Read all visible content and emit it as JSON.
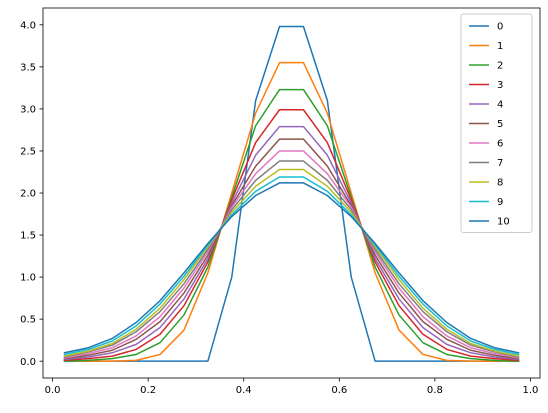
{
  "chart_data": {
    "type": "line",
    "title": "",
    "xlabel": "",
    "ylabel": "",
    "xlim": [
      -0.02,
      1.02
    ],
    "ylim": [
      -0.2,
      4.2
    ],
    "grid": false,
    "legend_position": "top-right",
    "xticks": [
      0.0,
      0.2,
      0.4,
      0.6,
      0.8,
      1.0
    ],
    "yticks": [
      0.0,
      0.5,
      1.0,
      1.5,
      2.0,
      2.5,
      3.0,
      3.5,
      4.0
    ],
    "x": [
      0.025,
      0.075,
      0.125,
      0.175,
      0.225,
      0.275,
      0.325,
      0.375,
      0.425,
      0.475,
      0.525,
      0.575,
      0.625,
      0.675,
      0.725,
      0.775,
      0.825,
      0.875,
      0.925,
      0.975
    ],
    "series": [
      {
        "name": "0",
        "color": "#1f77b4",
        "values": [
          0.0,
          0.0,
          0.0,
          0.0,
          0.0,
          0.0,
          0.0,
          1.0,
          3.1,
          3.98,
          3.98,
          3.1,
          1.0,
          0.0,
          0.0,
          0.0,
          0.0,
          0.0,
          0.0,
          0.0
        ]
      },
      {
        "name": "1",
        "color": "#ff7f0e",
        "values": [
          0.0,
          0.0,
          0.0,
          0.01,
          0.08,
          0.37,
          1.05,
          2.0,
          2.95,
          3.55,
          3.55,
          2.95,
          2.0,
          1.05,
          0.37,
          0.08,
          0.01,
          0.0,
          0.0,
          0.0
        ]
      },
      {
        "name": "2",
        "color": "#2ca02c",
        "values": [
          0.0,
          0.01,
          0.03,
          0.08,
          0.22,
          0.55,
          1.12,
          1.95,
          2.8,
          3.23,
          3.23,
          2.8,
          1.95,
          1.12,
          0.55,
          0.22,
          0.08,
          0.03,
          0.01,
          0.0
        ]
      },
      {
        "name": "3",
        "color": "#d62728",
        "values": [
          0.01,
          0.03,
          0.06,
          0.14,
          0.32,
          0.66,
          1.18,
          1.92,
          2.6,
          2.99,
          2.99,
          2.6,
          1.92,
          1.18,
          0.66,
          0.32,
          0.14,
          0.06,
          0.03,
          0.01
        ]
      },
      {
        "name": "4",
        "color": "#9467bd",
        "values": [
          0.02,
          0.05,
          0.1,
          0.2,
          0.4,
          0.74,
          1.22,
          1.88,
          2.45,
          2.79,
          2.79,
          2.45,
          1.88,
          1.22,
          0.74,
          0.4,
          0.2,
          0.1,
          0.05,
          0.02
        ]
      },
      {
        "name": "5",
        "color": "#8c564b",
        "values": [
          0.03,
          0.07,
          0.13,
          0.26,
          0.47,
          0.81,
          1.26,
          1.85,
          2.32,
          2.64,
          2.64,
          2.32,
          1.85,
          1.26,
          0.81,
          0.47,
          0.26,
          0.13,
          0.07,
          0.03
        ]
      },
      {
        "name": "6",
        "color": "#e377c2",
        "values": [
          0.04,
          0.09,
          0.16,
          0.3,
          0.53,
          0.87,
          1.3,
          1.83,
          2.23,
          2.5,
          2.5,
          2.23,
          1.83,
          1.3,
          0.87,
          0.53,
          0.3,
          0.16,
          0.09,
          0.04
        ]
      },
      {
        "name": "7",
        "color": "#7f7f7f",
        "values": [
          0.05,
          0.11,
          0.19,
          0.35,
          0.59,
          0.92,
          1.33,
          1.8,
          2.15,
          2.38,
          2.38,
          2.15,
          1.8,
          1.33,
          0.92,
          0.59,
          0.35,
          0.19,
          0.11,
          0.05
        ]
      },
      {
        "name": "8",
        "color": "#bcbd22",
        "values": [
          0.06,
          0.12,
          0.21,
          0.38,
          0.63,
          0.97,
          1.36,
          1.77,
          2.08,
          2.28,
          2.28,
          2.08,
          1.77,
          1.36,
          0.97,
          0.63,
          0.38,
          0.21,
          0.12,
          0.06
        ]
      },
      {
        "name": "9",
        "color": "#17becf",
        "values": [
          0.08,
          0.14,
          0.24,
          0.42,
          0.68,
          1.01,
          1.38,
          1.74,
          2.02,
          2.19,
          2.19,
          2.02,
          1.74,
          1.38,
          1.01,
          0.68,
          0.42,
          0.24,
          0.14,
          0.08
        ]
      },
      {
        "name": "10",
        "color": "#1f77b4",
        "values": [
          0.1,
          0.16,
          0.27,
          0.46,
          0.72,
          1.05,
          1.4,
          1.72,
          1.97,
          2.12,
          2.12,
          1.97,
          1.72,
          1.4,
          1.05,
          0.72,
          0.46,
          0.27,
          0.16,
          0.1
        ]
      }
    ]
  }
}
